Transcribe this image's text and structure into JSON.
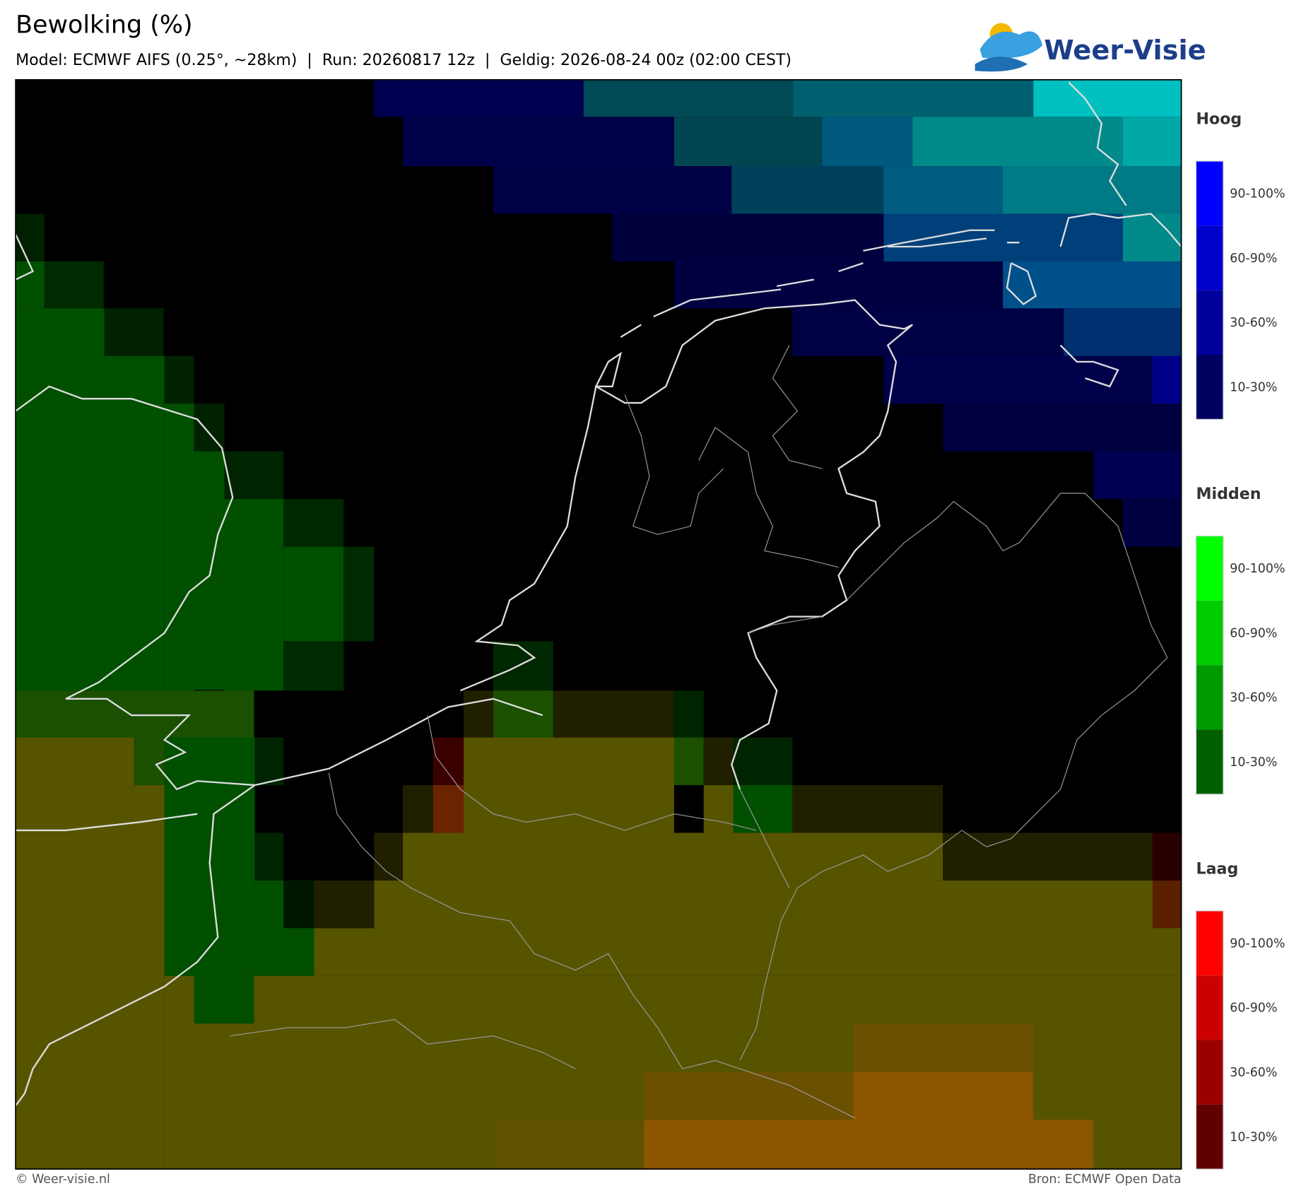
{
  "header": {
    "title": "Bewolking (%)",
    "subtitle": "Model: ECMWF AIFS (0.25°, ~28km)  |  Run: 20260817 12z  |  Geldig: 2026-08-24 00z (02:00 CEST)",
    "logo": "Weer-Visie"
  },
  "legend": [
    {
      "title": "Hoog",
      "labels": [
        "90-100%",
        "60-90%",
        "30-60%",
        "10-30%"
      ]
    },
    {
      "title": "Midden",
      "labels": [
        "90-100%",
        "60-90%",
        "30-60%",
        "10-30%"
      ]
    },
    {
      "title": "Laag",
      "labels": [
        "90-100%",
        "60-90%",
        "30-60%",
        "10-30%"
      ]
    }
  ],
  "footer": {
    "left": "© Weer-visie.nl",
    "right": "Bron: ECMWF Open Data"
  }
}
